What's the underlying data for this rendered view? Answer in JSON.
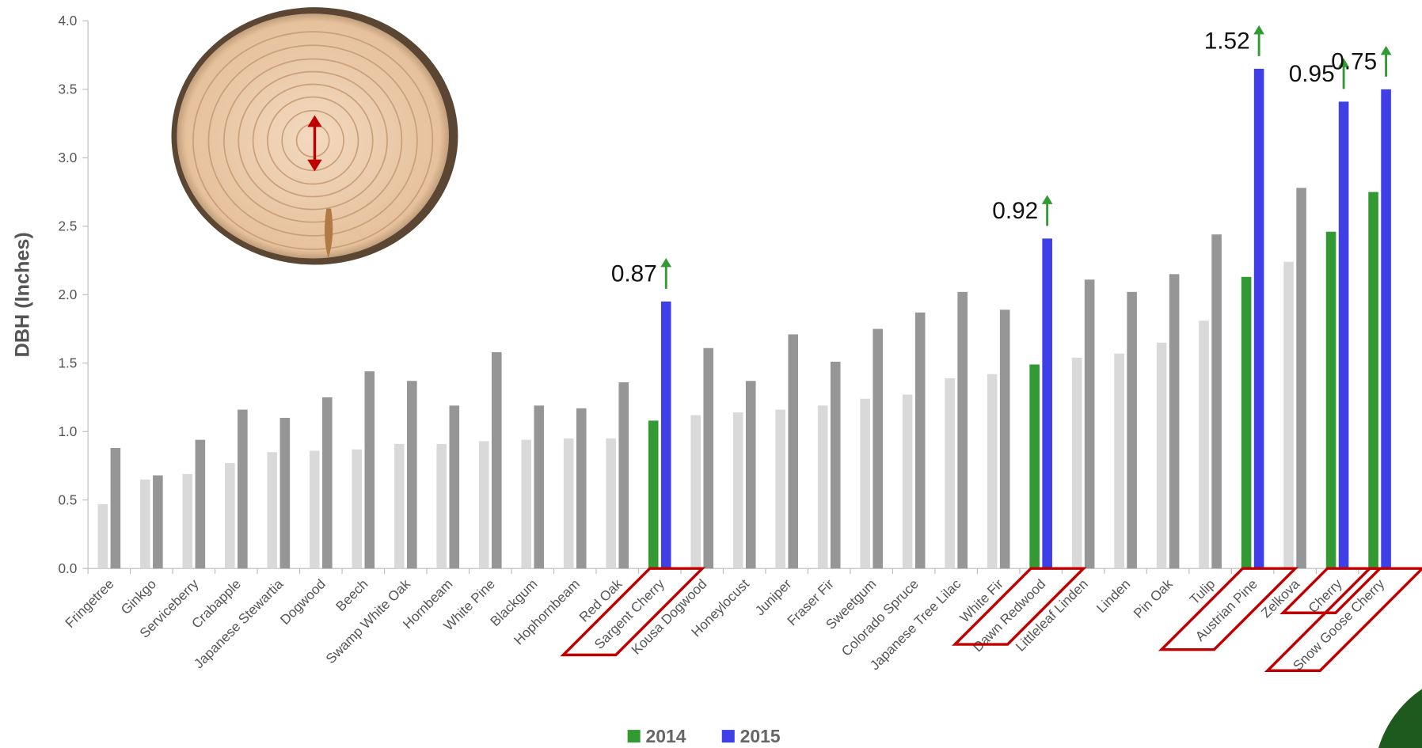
{
  "chart_data": {
    "type": "bar",
    "ylabel": "DBH (Inches)",
    "categories": [
      "Fringetree",
      "Ginkgo",
      "Serviceberry",
      "Crabapple",
      "Japanese Stewartia",
      "Dogwood",
      "Beech",
      "Swamp White Oak",
      "Hornbeam",
      "White Pine",
      "Blackgum",
      "Hophornbeam",
      "Red Oak",
      "Sargent Cherry",
      "Kousa Dogwood",
      "Honeylocust",
      "Juniper",
      "Fraser Fir",
      "Sweetgum",
      "Colorado Spruce",
      "Japanese Tree Lilac",
      "White Fir",
      "Dawn Redwood",
      "Littleleaf Linden",
      "Linden",
      "Pin Oak",
      "Tulip",
      "Austrian Pine",
      "Zelkova",
      "Cherry",
      "Snow Goose Cherry"
    ],
    "series": [
      {
        "name": "2014",
        "color": "#339933",
        "bar_colors": [
          "#d9d9d9",
          "#d9d9d9",
          "#d9d9d9",
          "#d9d9d9",
          "#d9d9d9",
          "#d9d9d9",
          "#d9d9d9",
          "#d9d9d9",
          "#d9d9d9",
          "#d9d9d9",
          "#d9d9d9",
          "#d9d9d9",
          "#d9d9d9",
          "#339933",
          "#d9d9d9",
          "#d9d9d9",
          "#d9d9d9",
          "#d9d9d9",
          "#d9d9d9",
          "#d9d9d9",
          "#d9d9d9",
          "#d9d9d9",
          "#339933",
          "#d9d9d9",
          "#d9d9d9",
          "#d9d9d9",
          "#d9d9d9",
          "#339933",
          "#d9d9d9",
          "#339933",
          "#339933"
        ],
        "values": [
          0.47,
          0.65,
          0.69,
          0.77,
          0.85,
          0.86,
          0.87,
          0.91,
          0.91,
          0.93,
          0.94,
          0.95,
          0.95,
          1.08,
          1.12,
          1.14,
          1.16,
          1.19,
          1.24,
          1.27,
          1.39,
          1.42,
          1.49,
          1.54,
          1.57,
          1.65,
          1.81,
          2.13,
          2.24,
          2.46,
          2.75
        ]
      },
      {
        "name": "2015",
        "color": "#3f3fe8",
        "bar_colors": [
          "#969696",
          "#969696",
          "#969696",
          "#969696",
          "#969696",
          "#969696",
          "#969696",
          "#969696",
          "#969696",
          "#969696",
          "#969696",
          "#969696",
          "#969696",
          "#3f3fe8",
          "#969696",
          "#969696",
          "#969696",
          "#969696",
          "#969696",
          "#969696",
          "#969696",
          "#969696",
          "#3f3fe8",
          "#969696",
          "#969696",
          "#969696",
          "#969696",
          "#3f3fe8",
          "#969696",
          "#3f3fe8",
          "#3f3fe8"
        ],
        "values": [
          0.88,
          0.68,
          0.94,
          1.16,
          1.1,
          1.25,
          1.44,
          1.37,
          1.19,
          1.58,
          1.19,
          1.17,
          1.36,
          1.95,
          1.61,
          1.37,
          1.71,
          1.51,
          1.75,
          1.87,
          2.02,
          1.89,
          2.41,
          2.11,
          2.02,
          2.15,
          2.44,
          3.65,
          2.78,
          3.41,
          3.5
        ]
      }
    ],
    "ylim": [
      0,
      4
    ],
    "yticks": [
      {
        "value": 0,
        "label": "0.0"
      },
      0.5,
      {
        "value": 1,
        "label": "1.0"
      },
      1.5,
      {
        "value": 2,
        "label": "2.0"
      },
      2.5,
      {
        "value": 3,
        "label": "3.0"
      },
      3.5,
      {
        "value": 4,
        "label": "4.0"
      }
    ],
    "annotations": [
      {
        "label": "0.87",
        "category": "Sargent Cherry"
      },
      {
        "label": "0.92",
        "category": "Dawn Redwood"
      },
      {
        "label": "1.52",
        "category": "Austrian Pine"
      },
      {
        "label": "0.95",
        "category": "Cherry"
      },
      {
        "label": "0.75",
        "category": "Snow Goose Cherry"
      }
    ],
    "legend": "bottom"
  }
}
